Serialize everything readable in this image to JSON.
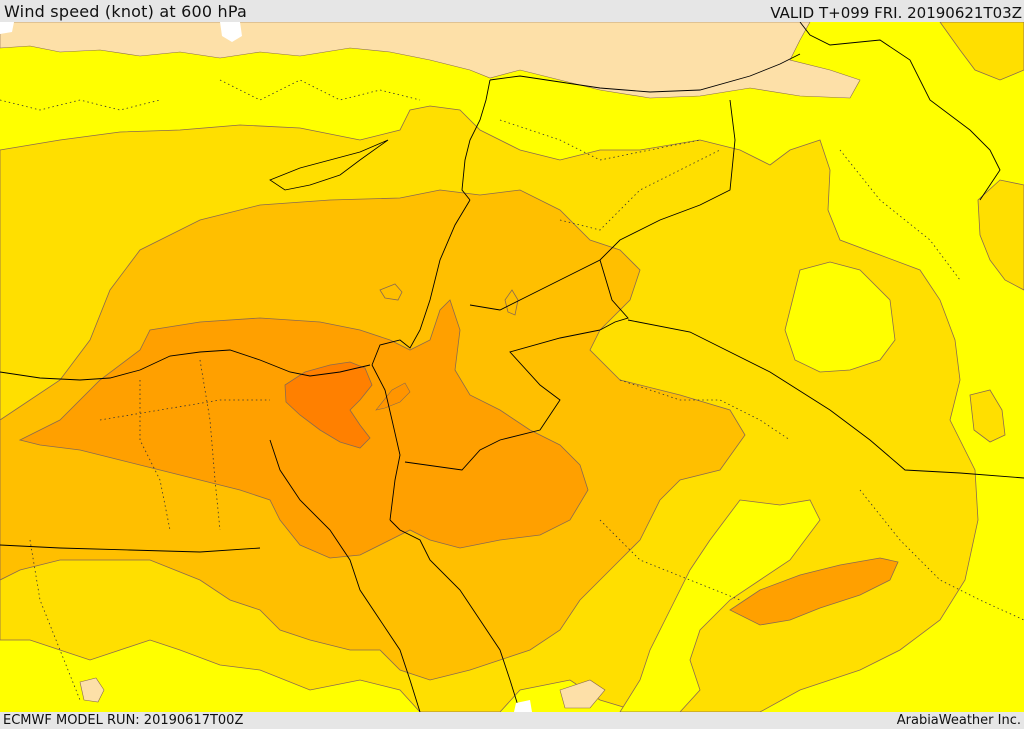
{
  "header": {
    "title": "Wind speed (knot) at 600 hPa",
    "valid_time": "VALID T+099 FRI. 20190621T03Z"
  },
  "footer": {
    "model_run": "ECMWF MODEL RUN: 20190617T00Z",
    "credit": "ArabiaWeather Inc."
  },
  "map": {
    "variable": "wind speed",
    "units": "knot",
    "pressure_level_hpa": 600,
    "forecast_hour": 99,
    "colors": {
      "land_no_data": "#fde0a8",
      "sea_white": "#ffffff",
      "band_1": "#ffff00",
      "band_2": "#ffdf00",
      "band_3": "#ffbf00",
      "band_4": "#ffa000",
      "band_5": "#ff8000",
      "contour_line": "#8a6a50",
      "border": "#000000"
    }
  }
}
